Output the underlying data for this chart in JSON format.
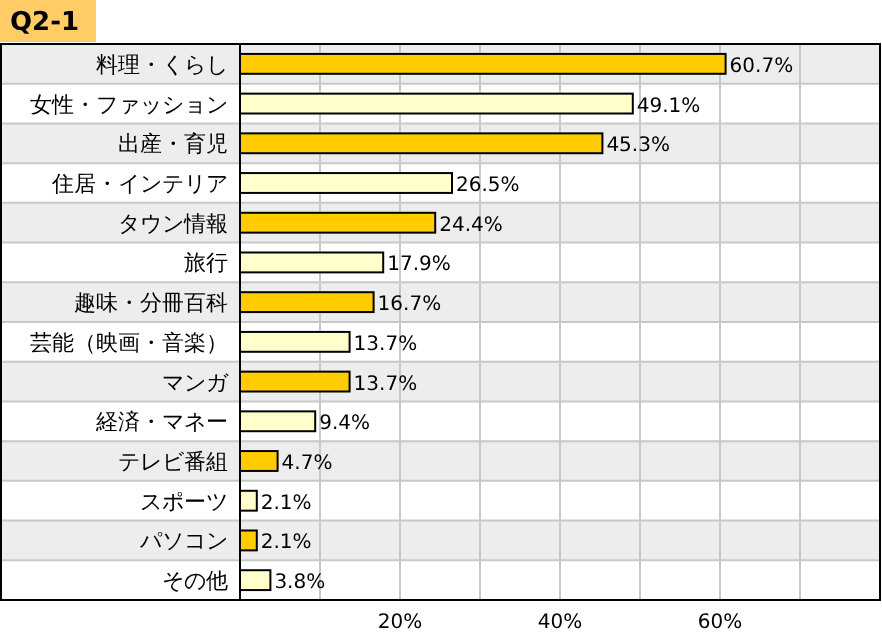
{
  "chart_data": {
    "type": "bar",
    "orientation": "horizontal",
    "title": "Q2-1",
    "categories": [
      "料理・くらし",
      "女性・ファッション",
      "出産・育児",
      "住居・インテリア",
      "タウン情報",
      "旅行",
      "趣味・分冊百科",
      "芸能（映画・音楽）",
      "マンガ",
      "経済・マネー",
      "テレビ番組",
      "スポーツ",
      "パソコン",
      "その他"
    ],
    "values": [
      60.7,
      49.1,
      45.3,
      26.5,
      24.4,
      17.9,
      16.7,
      13.7,
      13.7,
      9.4,
      4.7,
      2.1,
      2.1,
      3.8
    ],
    "colors": [
      "#ffcc00",
      "#ffffcc",
      "#ffcc00",
      "#ffffcc",
      "#ffcc00",
      "#ffffcc",
      "#ffcc00",
      "#ffffcc",
      "#ffcc00",
      "#ffffcc",
      "#ffcc00",
      "#ffffcc",
      "#ffcc00",
      "#ffffcc"
    ],
    "value_labels": [
      "60.7%",
      "49.1%",
      "45.3%",
      "26.5%",
      "24.4%",
      "17.9%",
      "16.7%",
      "13.7%",
      "13.7%",
      "9.4%",
      "4.7%",
      "2.1%",
      "2.1%",
      "3.8%"
    ],
    "xlim": [
      0,
      80
    ],
    "xticks": [
      {
        "value": 10,
        "label": null
      },
      {
        "value": 20,
        "label": "20%"
      },
      {
        "value": 30,
        "label": null
      },
      {
        "value": 40,
        "label": "40%"
      },
      {
        "value": 50,
        "label": null
      },
      {
        "value": 60,
        "label": "60%"
      },
      {
        "value": 70,
        "label": null
      }
    ],
    "grid": "x"
  }
}
